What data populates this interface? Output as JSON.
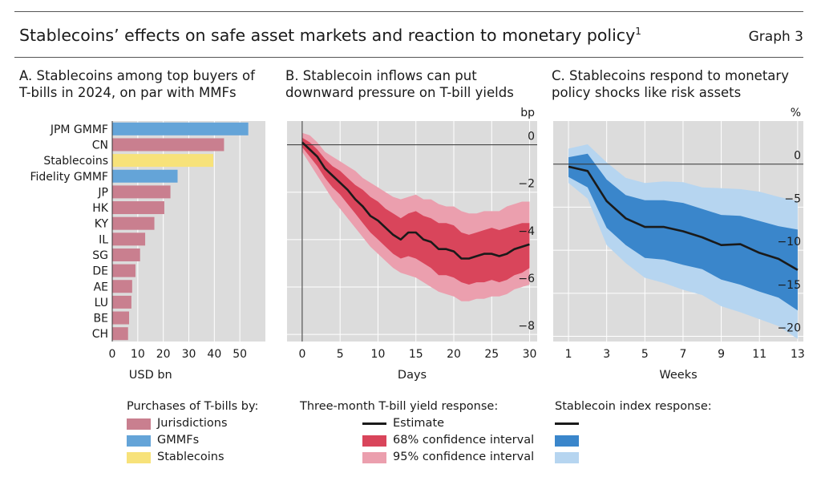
{
  "header": {
    "title": "Stablecoins’ effects on safe asset markets and reaction to monetary policy",
    "title_sup": "1",
    "graph_label": "Graph 3"
  },
  "colors": {
    "jurisdictions": "#c97f8f",
    "gmmf": "#64a4d8",
    "stablecoins": "#f7e27a",
    "estimate": "#1a1a1a",
    "b_ci68": "#d9455b",
    "b_ci95": "#eb9fae",
    "c_ci68": "#3a86cb",
    "c_ci95": "#b6d5f0",
    "plot_bg": "#dcdcdc"
  },
  "chart_data": [
    {
      "id": "A",
      "type": "bar",
      "orientation": "horizontal",
      "title": "A. Stablecoins among top buyers of T-bills in 2024, on par with MMFs",
      "xlabel": "USD bn",
      "xlim": [
        0,
        60
      ],
      "xticks": [
        0,
        10,
        20,
        30,
        40,
        50
      ],
      "grid": true,
      "categories": [
        "JPM GMMF",
        "CN",
        "Stablecoins",
        "Fidelity GMMF",
        "JP",
        "HK",
        "KY",
        "IL",
        "SG",
        "DE",
        "AE",
        "LU",
        "BE",
        "CH"
      ],
      "values": [
        53.3,
        43.8,
        39.6,
        25.6,
        22.8,
        20.4,
        16.5,
        12.9,
        10.9,
        9.1,
        7.8,
        7.5,
        6.6,
        6.2
      ],
      "groups": [
        "gmmf",
        "jurisdictions",
        "stablecoins",
        "gmmf",
        "jurisdictions",
        "jurisdictions",
        "jurisdictions",
        "jurisdictions",
        "jurisdictions",
        "jurisdictions",
        "jurisdictions",
        "jurisdictions",
        "jurisdictions",
        "jurisdictions"
      ],
      "legend": {
        "heading": "Purchases of T-bills by:",
        "items": [
          {
            "key": "jurisdictions",
            "label": "Jurisdictions"
          },
          {
            "key": "gmmf",
            "label": "GMMFs"
          },
          {
            "key": "stablecoins",
            "label": "Stablecoins"
          }
        ]
      }
    },
    {
      "id": "B",
      "type": "line",
      "title": "B. Stablecoin inflows can put downward pressure on T-bill yields",
      "xlabel": "Days",
      "unit": "bp",
      "xlim": [
        -2,
        31
      ],
      "ylim": [
        -8.3,
        1.0
      ],
      "xticks": [
        0,
        5,
        10,
        15,
        20,
        25,
        30
      ],
      "yticks": [
        0,
        -2,
        -4,
        -6,
        -8
      ],
      "x": [
        0,
        1,
        2,
        3,
        4,
        5,
        6,
        7,
        8,
        9,
        10,
        11,
        12,
        13,
        14,
        15,
        16,
        17,
        18,
        19,
        20,
        21,
        22,
        23,
        24,
        25,
        26,
        27,
        28,
        29,
        30
      ],
      "estimate": [
        0.1,
        -0.2,
        -0.5,
        -1.0,
        -1.3,
        -1.6,
        -1.9,
        -2.3,
        -2.6,
        -3.0,
        -3.2,
        -3.5,
        -3.8,
        -4.0,
        -3.7,
        -3.7,
        -4.0,
        -4.1,
        -4.4,
        -4.4,
        -4.5,
        -4.8,
        -4.8,
        -4.7,
        -4.6,
        -4.6,
        -4.7,
        -4.6,
        -4.4,
        -4.3,
        -4.2
      ],
      "ci68": {
        "lower": [
          -0.1,
          -0.5,
          -0.9,
          -1.4,
          -1.8,
          -2.1,
          -2.5,
          -2.9,
          -3.3,
          -3.7,
          -4.0,
          -4.3,
          -4.6,
          -4.8,
          -4.7,
          -4.8,
          -5.0,
          -5.2,
          -5.5,
          -5.5,
          -5.6,
          -5.8,
          -5.9,
          -5.8,
          -5.8,
          -5.7,
          -5.8,
          -5.7,
          -5.5,
          -5.4,
          -5.2
        ],
        "upper": [
          0.3,
          0.1,
          -0.2,
          -0.6,
          -0.9,
          -1.1,
          -1.4,
          -1.7,
          -1.9,
          -2.2,
          -2.4,
          -2.7,
          -2.9,
          -3.1,
          -2.9,
          -2.8,
          -3.0,
          -3.1,
          -3.3,
          -3.3,
          -3.4,
          -3.7,
          -3.8,
          -3.7,
          -3.6,
          -3.5,
          -3.6,
          -3.5,
          -3.4,
          -3.3,
          -3.3
        ]
      },
      "ci95": {
        "lower": [
          -0.3,
          -0.8,
          -1.3,
          -1.8,
          -2.3,
          -2.7,
          -3.1,
          -3.5,
          -3.9,
          -4.3,
          -4.6,
          -4.9,
          -5.2,
          -5.4,
          -5.5,
          -5.6,
          -5.8,
          -6.0,
          -6.2,
          -6.3,
          -6.4,
          -6.6,
          -6.6,
          -6.5,
          -6.5,
          -6.4,
          -6.4,
          -6.3,
          -6.1,
          -6.0,
          -5.9
        ],
        "upper": [
          0.5,
          0.4,
          0.1,
          -0.3,
          -0.5,
          -0.7,
          -0.9,
          -1.1,
          -1.4,
          -1.6,
          -1.8,
          -2.0,
          -2.2,
          -2.3,
          -2.2,
          -2.1,
          -2.3,
          -2.3,
          -2.5,
          -2.6,
          -2.6,
          -2.8,
          -2.9,
          -2.9,
          -2.8,
          -2.8,
          -2.8,
          -2.6,
          -2.5,
          -2.4,
          -2.4
        ]
      },
      "legend": {
        "heading": "Three-month T-bill yield response:",
        "items": [
          {
            "key": "estimate",
            "label": "Estimate"
          },
          {
            "key": "b_ci68",
            "label": "68% confidence interval"
          },
          {
            "key": "b_ci95",
            "label": "95% confidence interval"
          }
        ]
      }
    },
    {
      "id": "C",
      "type": "line",
      "title": "C. Stablecoins respond to monetary policy shocks like risk assets",
      "xlabel": "Weeks",
      "unit": "%",
      "xlim": [
        0.2,
        13.3
      ],
      "ylim": [
        -20.6,
        5.0
      ],
      "xticks": [
        1,
        3,
        5,
        7,
        9,
        11,
        13
      ],
      "yticks": [
        0,
        -5,
        -10,
        -15,
        -20
      ],
      "x": [
        1,
        2,
        3,
        4,
        5,
        6,
        7,
        8,
        9,
        10,
        11,
        12,
        13
      ],
      "estimate": [
        -0.3,
        -0.8,
        -4.3,
        -6.3,
        -7.3,
        -7.3,
        -7.8,
        -8.5,
        -9.4,
        -9.3,
        -10.3,
        -11.0,
        -12.3
      ],
      "ci68": {
        "lower": [
          -1.5,
          -2.7,
          -7.4,
          -9.4,
          -10.9,
          -11.1,
          -11.7,
          -12.2,
          -13.4,
          -14.0,
          -14.8,
          -15.5,
          -17.0
        ],
        "upper": [
          0.8,
          1.2,
          -1.8,
          -3.6,
          -4.2,
          -4.2,
          -4.5,
          -5.2,
          -5.9,
          -6.0,
          -6.6,
          -7.2,
          -7.6
        ]
      },
      "ci95": {
        "lower": [
          -2.2,
          -4.0,
          -9.4,
          -11.5,
          -13.2,
          -13.8,
          -14.6,
          -15.2,
          -16.5,
          -17.2,
          -18.0,
          -18.8,
          -20.3
        ],
        "upper": [
          1.8,
          2.3,
          0.2,
          -1.6,
          -2.2,
          -2.0,
          -2.1,
          -2.7,
          -2.8,
          -2.9,
          -3.2,
          -3.8,
          -4.3
        ]
      },
      "legend": {
        "heading": "Stablecoin index response:",
        "items": [
          {
            "key": "estimate",
            "label": ""
          },
          {
            "key": "c_ci68",
            "label": ""
          },
          {
            "key": "c_ci95",
            "label": ""
          }
        ]
      }
    }
  ]
}
